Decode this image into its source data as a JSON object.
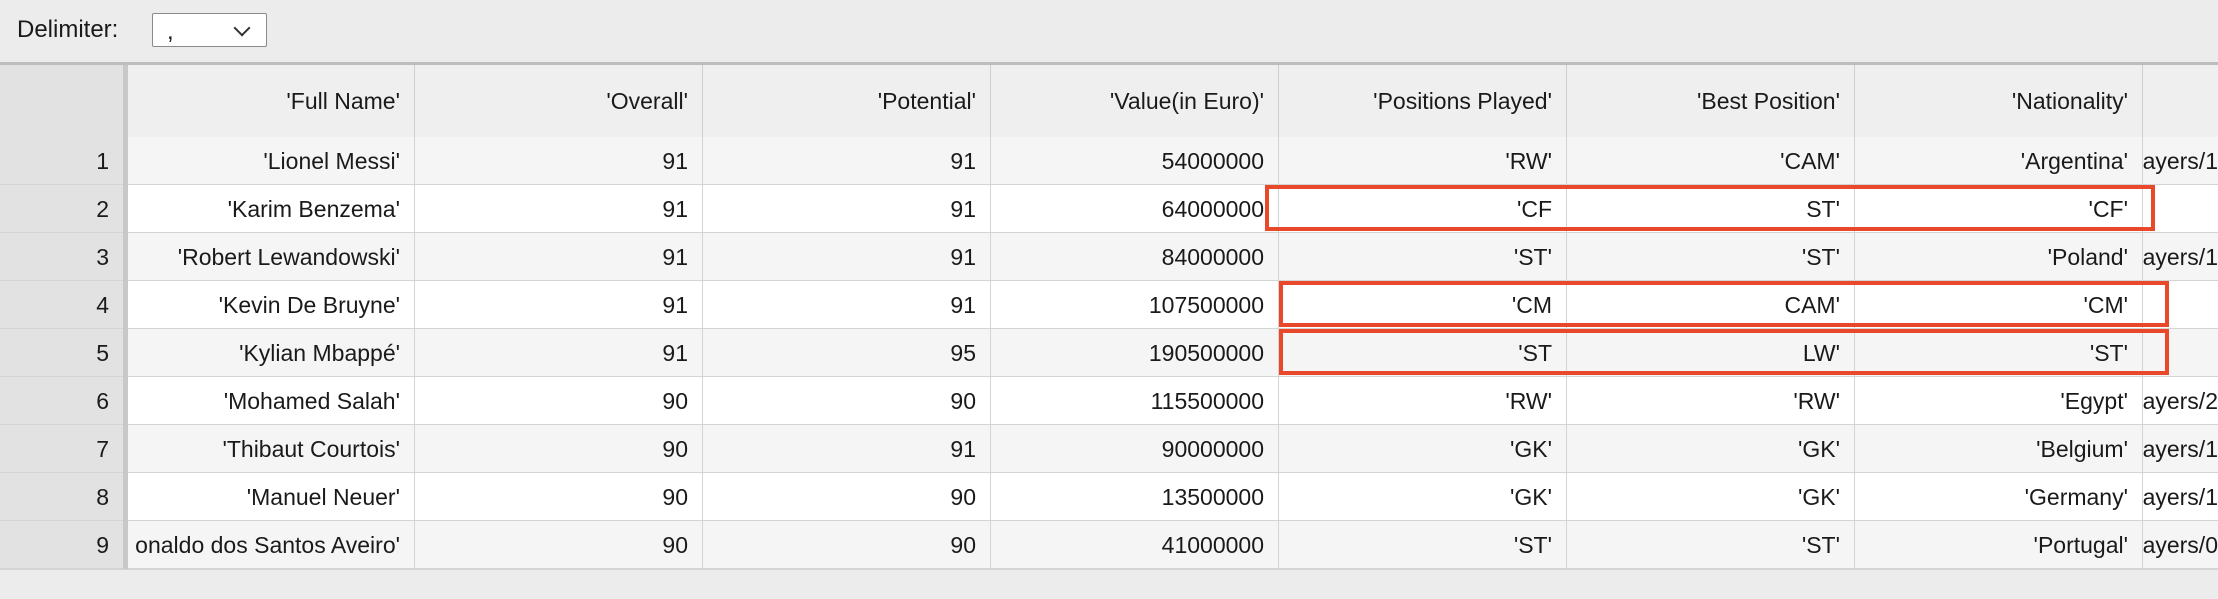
{
  "toolbar": {
    "delimiter_label": "Delimiter:",
    "delimiter_value": ","
  },
  "table": {
    "headers": [
      "'Full Name'",
      "'Overall'",
      "'Potential'",
      "'Value(in Euro)'",
      "'Positions Played'",
      "'Best Position'",
      "'Nationality'"
    ],
    "rows": [
      {
        "n": "1",
        "cells": [
          "'Lionel Messi'",
          "91",
          "91",
          "54000000",
          "'RW'",
          "'CAM'",
          "'Argentina'"
        ],
        "overflow": "ayers/1"
      },
      {
        "n": "2",
        "cells": [
          "'Karim Benzema'",
          "91",
          "91",
          "64000000",
          "'CF",
          "ST'",
          "'CF'"
        ],
        "overflow": ""
      },
      {
        "n": "3",
        "cells": [
          "'Robert Lewandowski'",
          "91",
          "91",
          "84000000",
          "'ST'",
          "'ST'",
          "'Poland'"
        ],
        "overflow": "ayers/1"
      },
      {
        "n": "4",
        "cells": [
          "'Kevin De Bruyne'",
          "91",
          "91",
          "107500000",
          "'CM",
          "CAM'",
          "'CM'"
        ],
        "overflow": ""
      },
      {
        "n": "5",
        "cells": [
          "'Kylian Mbappé'",
          "91",
          "95",
          "190500000",
          "'ST",
          "LW'",
          "'ST'"
        ],
        "overflow": ""
      },
      {
        "n": "6",
        "cells": [
          "'Mohamed Salah'",
          "90",
          "90",
          "115500000",
          "'RW'",
          "'RW'",
          "'Egypt'"
        ],
        "overflow": "ayers/2"
      },
      {
        "n": "7",
        "cells": [
          "'Thibaut Courtois'",
          "90",
          "91",
          "90000000",
          "'GK'",
          "'GK'",
          "'Belgium'"
        ],
        "overflow": "ayers/1"
      },
      {
        "n": "8",
        "cells": [
          "'Manuel Neuer'",
          "90",
          "90",
          "13500000",
          "'GK'",
          "'GK'",
          "'Germany'"
        ],
        "overflow": "ayers/1"
      },
      {
        "n": "9",
        "cells": [
          "onaldo dos Santos Aveiro'",
          "90",
          "90",
          "41000000",
          "'ST'",
          "'ST'",
          "'Portugal'"
        ],
        "overflow": "ayers/0"
      }
    ]
  },
  "colors": {
    "highlight": "#e8492b"
  }
}
